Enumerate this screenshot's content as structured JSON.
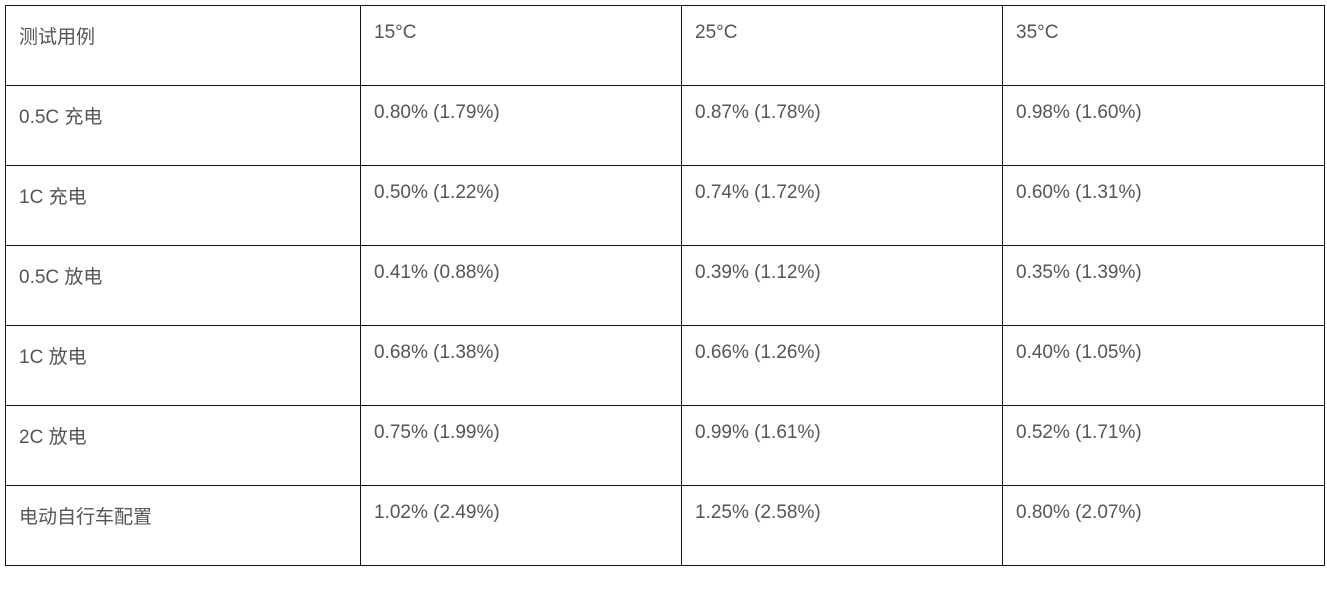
{
  "table": {
    "headers": [
      "测试用例",
      "15°C",
      "25°C",
      "35°C"
    ],
    "rows": [
      [
        "0.5C 充电",
        "0.80% (1.79%)",
        "0.87% (1.78%)",
        "0.98% (1.60%)"
      ],
      [
        "1C 充电",
        "0.50% (1.22%)",
        "0.74% (1.72%)",
        "0.60% (1.31%)"
      ],
      [
        "0.5C 放电",
        "0.41% (0.88%)",
        "0.39% (1.12%)",
        "0.35% (1.39%)"
      ],
      [
        "1C 放电",
        "0.68% (1.38%)",
        "0.66% (1.26%)",
        "0.40% (1.05%)"
      ],
      [
        "2C 放电",
        "0.75% (1.99%)",
        "0.99% (1.61%)",
        "0.52% (1.71%)"
      ],
      [
        "电动自行车配置",
        "1.02% (2.49%)",
        "1.25% (2.58%)",
        "0.80% (2.07%)"
      ]
    ]
  }
}
